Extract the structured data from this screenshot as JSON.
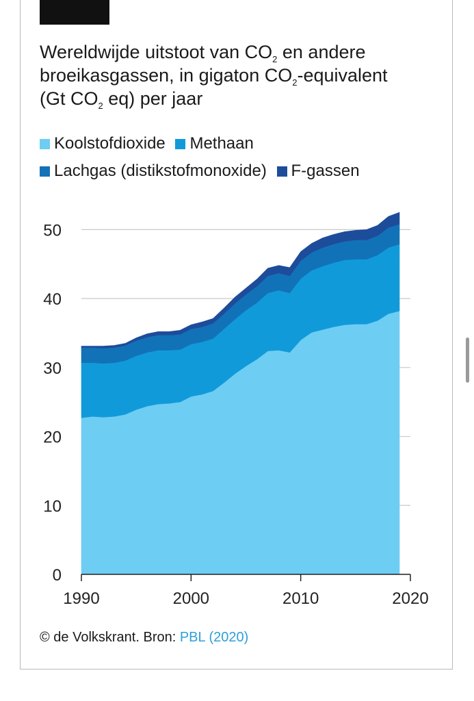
{
  "title": {
    "line1_a": "Wereldwijde uitstoot van CO",
    "line1_sub": "2",
    "line1_b": " en andere",
    "line2_a": "broeikasgassen, in gigaton CO",
    "line2_sub": "2",
    "line2_b": "-equivalent",
    "line3_a": "(Gt CO",
    "line3_sub": "2",
    "line3_b": " eq) per jaar"
  },
  "legend": [
    {
      "label": "Koolstofdioxide",
      "color": "#6ecdf3"
    },
    {
      "label": "Methaan",
      "color": "#119ad9"
    },
    {
      "label": "Lachgas (distikstofmonoxide)",
      "color": "#1272b8"
    },
    {
      "label": "F-gassen",
      "color": "#1d4c9a"
    }
  ],
  "source": {
    "prefix": "© de Volkskrant. Bron: ",
    "link": "PBL (2020)"
  },
  "chart_data": {
    "type": "area",
    "stacked": true,
    "x": [
      1990,
      1991,
      1992,
      1993,
      1994,
      1995,
      1996,
      1997,
      1998,
      1999,
      2000,
      2001,
      2002,
      2003,
      2004,
      2005,
      2006,
      2007,
      2008,
      2009,
      2010,
      2011,
      2012,
      2013,
      2014,
      2015,
      2016,
      2017,
      2018,
      2019
    ],
    "series": [
      {
        "name": "Koolstofdioxide",
        "color": "#6ecdf3",
        "values": [
          22.7,
          22.9,
          22.8,
          22.9,
          23.2,
          23.9,
          24.4,
          24.7,
          24.8,
          25.0,
          25.8,
          26.1,
          26.6,
          27.8,
          29.1,
          30.2,
          31.2,
          32.4,
          32.5,
          32.2,
          34.0,
          35.1,
          35.5,
          35.9,
          36.2,
          36.3,
          36.3,
          36.8,
          37.8,
          38.2
        ]
      },
      {
        "name": "Methaan",
        "color": "#119ad9",
        "values": [
          8.0,
          7.8,
          7.8,
          7.8,
          7.8,
          7.8,
          7.8,
          7.8,
          7.7,
          7.6,
          7.6,
          7.6,
          7.6,
          7.8,
          7.9,
          8.1,
          8.2,
          8.4,
          8.7,
          8.6,
          8.9,
          9.0,
          9.2,
          9.3,
          9.4,
          9.4,
          9.4,
          9.5,
          9.6,
          9.7
        ]
      },
      {
        "name": "Lachgas (distikstofmonoxide)",
        "color": "#1272b8",
        "values": [
          2.2,
          2.2,
          2.2,
          2.2,
          2.2,
          2.2,
          2.2,
          2.2,
          2.2,
          2.2,
          2.2,
          2.2,
          2.2,
          2.2,
          2.3,
          2.3,
          2.4,
          2.5,
          2.5,
          2.5,
          2.6,
          2.6,
          2.7,
          2.7,
          2.7,
          2.8,
          2.8,
          2.8,
          2.9,
          2.9
        ]
      },
      {
        "name": "F-gassen",
        "color": "#1d4c9a",
        "values": [
          0.2,
          0.2,
          0.3,
          0.3,
          0.3,
          0.4,
          0.5,
          0.5,
          0.5,
          0.6,
          0.6,
          0.7,
          0.7,
          0.8,
          0.9,
          0.9,
          1.0,
          1.1,
          1.1,
          1.2,
          1.3,
          1.3,
          1.4,
          1.4,
          1.4,
          1.4,
          1.5,
          1.5,
          1.6,
          1.7
        ]
      }
    ],
    "xticks": [
      1990,
      2000,
      2010,
      2020
    ],
    "yticks": [
      0,
      10,
      20,
      30,
      40,
      50
    ],
    "xlim": [
      1990,
      2020
    ],
    "ylim": [
      0,
      55
    ],
    "grid": true,
    "legend_position": "top"
  }
}
